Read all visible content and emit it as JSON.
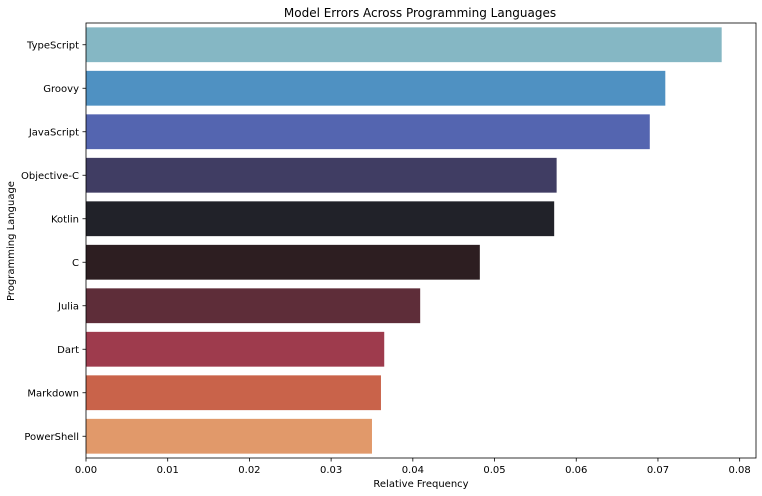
{
  "chart_data": {
    "type": "bar",
    "orientation": "horizontal",
    "title": "Model Errors Across Programming Languages",
    "xlabel": "Relative Frequency",
    "ylabel": "Programming Language",
    "xlim": [
      0,
      0.082
    ],
    "xticks": [
      "0.00",
      "0.01",
      "0.02",
      "0.03",
      "0.04",
      "0.05",
      "0.06",
      "0.07",
      "0.08"
    ],
    "grid": false,
    "categories": [
      "TypeScript",
      "Groovy",
      "JavaScript",
      "Objective-C",
      "Kotlin",
      "C",
      "Julia",
      "Dart",
      "Markdown",
      "PowerShell"
    ],
    "values": [
      0.0778,
      0.0709,
      0.069,
      0.0576,
      0.0573,
      0.0482,
      0.0409,
      0.0365,
      0.0361,
      0.035
    ],
    "colors": [
      "#85b7c4",
      "#4f91c2",
      "#5465b0",
      "#403d63",
      "#212229",
      "#2d1e21",
      "#5e2d39",
      "#9e3b4d",
      "#c9634a",
      "#e1996a"
    ]
  }
}
